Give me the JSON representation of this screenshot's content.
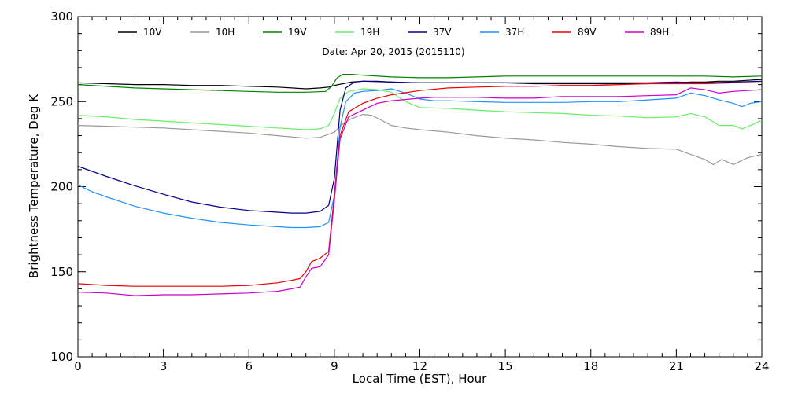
{
  "chart_data": {
    "type": "line",
    "title": "",
    "subtitle": "Date: Apr 20, 2015 (2015110)",
    "xlabel": "Local Time (EST), Hour",
    "ylabel": "Brightness Temperature, Deg K",
    "xlim": [
      0,
      24
    ],
    "ylim": [
      100,
      300
    ],
    "xticks": [
      0,
      3,
      6,
      9,
      12,
      15,
      18,
      21,
      24
    ],
    "yticks": [
      100,
      150,
      200,
      250,
      300
    ],
    "grid": false,
    "legend_position": "top",
    "series": [
      {
        "name": "10V",
        "color": "#000000",
        "x": [
          0,
          1,
          2,
          3,
          4,
          5,
          6,
          7,
          7.5,
          8,
          8.5,
          8.8,
          9,
          9.3,
          9.6,
          10,
          10.5,
          11,
          12,
          13,
          14,
          15,
          16,
          17,
          18,
          19,
          20,
          21,
          21.5,
          22,
          22.5,
          23,
          23.5,
          24
        ],
        "y": [
          261,
          260.5,
          260,
          260,
          259.5,
          259.5,
          259,
          258.5,
          258,
          257.5,
          258,
          258.5,
          259.5,
          260.5,
          261.5,
          262,
          262,
          261.5,
          261,
          261,
          261,
          261,
          260.5,
          260.5,
          260.5,
          260.5,
          260.5,
          261,
          261.5,
          261.5,
          262,
          262,
          262.5,
          263
        ]
      },
      {
        "name": "10H",
        "color": "#999999",
        "x": [
          0,
          1,
          2,
          3,
          4,
          5,
          6,
          7,
          8,
          8.5,
          9,
          9.3,
          9.6,
          10,
          10.3,
          10.6,
          11,
          11.5,
          12,
          13,
          14,
          15,
          16,
          17,
          18,
          19,
          20,
          21,
          21.5,
          22,
          22.3,
          22.6,
          23,
          23.5,
          24
        ],
        "y": [
          236,
          235.5,
          235,
          234.5,
          233.5,
          232.5,
          231.5,
          230,
          228.5,
          229,
          232,
          237,
          240,
          242.5,
          242,
          239.5,
          236,
          234.5,
          233.5,
          232,
          230,
          228.5,
          227.5,
          226,
          225,
          223.5,
          222.5,
          222,
          219,
          216,
          213,
          216,
          213,
          217,
          219
        ]
      },
      {
        "name": "19V",
        "color": "#008000",
        "x": [
          0,
          1,
          2,
          3,
          4,
          5,
          6,
          7,
          8,
          8.7,
          8.9,
          9.1,
          9.3,
          9.6,
          10,
          11,
          12,
          13,
          14,
          15,
          16,
          17,
          18,
          19,
          20,
          21,
          22,
          23,
          24
        ],
        "y": [
          260,
          259,
          258,
          257.5,
          257,
          256.5,
          256,
          255.5,
          255.5,
          256,
          259,
          264,
          266,
          266,
          265.5,
          264.5,
          264,
          264,
          264.5,
          265,
          265,
          265,
          265,
          265,
          265,
          265,
          265,
          264.5,
          265
        ]
      },
      {
        "name": "19H",
        "color": "#66ee66",
        "x": [
          0,
          1,
          2,
          3,
          4,
          5,
          6,
          7,
          8,
          8.5,
          8.8,
          9,
          9.2,
          9.5,
          10,
          10.5,
          11,
          11.5,
          12,
          13,
          14,
          15,
          16,
          17,
          18,
          19,
          20,
          21,
          21.5,
          22,
          22.5,
          23,
          23.3,
          23.6,
          24
        ],
        "y": [
          242,
          241,
          239.5,
          238.5,
          237.5,
          236.5,
          235.5,
          234.5,
          233.5,
          234,
          236,
          243,
          252,
          256,
          257.5,
          257,
          255.5,
          250,
          246.5,
          246,
          245,
          244,
          243.5,
          243,
          242,
          241.5,
          240.5,
          241,
          243,
          241,
          236,
          236,
          234,
          236,
          239
        ]
      },
      {
        "name": "37V",
        "color": "#00008b",
        "x": [
          0,
          0.5,
          1,
          2,
          3,
          4,
          5,
          6,
          7,
          7.5,
          8,
          8.5,
          8.8,
          9,
          9.1,
          9.2,
          9.4,
          9.7,
          10,
          11,
          12,
          13,
          14,
          15,
          16,
          17,
          18,
          19,
          20,
          21,
          22,
          23,
          24
        ],
        "y": [
          212,
          209,
          206,
          200.5,
          195.5,
          191,
          188,
          186,
          185,
          184.5,
          184.5,
          185.5,
          189,
          205,
          225,
          245,
          258,
          261.5,
          262,
          261.5,
          261,
          261,
          261,
          261,
          261,
          261,
          261,
          261,
          261,
          261.5,
          261,
          261.5,
          262
        ]
      },
      {
        "name": "37H",
        "color": "#1e90ff",
        "x": [
          0,
          0.5,
          1,
          2,
          3,
          4,
          5,
          6,
          7,
          7.5,
          8,
          8.5,
          8.8,
          9,
          9.1,
          9.2,
          9.4,
          9.7,
          10,
          10.5,
          11,
          11.5,
          12,
          12.5,
          13,
          14,
          15,
          16,
          17,
          18,
          19,
          20,
          21,
          21.5,
          22,
          22.5,
          23,
          23.3,
          23.6,
          24
        ],
        "y": [
          201,
          197,
          194,
          188.5,
          184.5,
          181.5,
          179,
          177.5,
          176.5,
          176,
          176,
          176.5,
          179,
          195,
          215,
          235,
          250,
          255,
          256,
          256.5,
          257.5,
          255,
          251.5,
          250.5,
          250.5,
          250,
          249.5,
          249.5,
          249.5,
          250,
          250,
          251,
          252,
          255,
          253.5,
          251,
          249,
          247,
          249,
          250
        ]
      },
      {
        "name": "89V",
        "color": "#ee0000",
        "x": [
          0,
          1,
          2,
          3,
          4,
          5,
          6,
          7,
          7.5,
          7.8,
          8,
          8.2,
          8.5,
          8.8,
          9,
          9.2,
          9.5,
          10,
          10.5,
          11,
          12,
          13,
          14,
          15,
          16,
          17,
          18,
          19,
          20,
          21,
          22,
          23,
          24
        ],
        "y": [
          143,
          142,
          141.5,
          141.5,
          141.5,
          141.5,
          142,
          143.5,
          145,
          146,
          150,
          156,
          158,
          162,
          195,
          230,
          244,
          249,
          252,
          254,
          256.5,
          258,
          258.5,
          259,
          259,
          259.5,
          259.5,
          260,
          260.5,
          260.5,
          260.5,
          261,
          261
        ]
      },
      {
        "name": "89H",
        "color": "#cc00cc",
        "x": [
          0,
          1,
          2,
          3,
          4,
          5,
          6,
          7,
          7.5,
          7.8,
          8,
          8.2,
          8.5,
          8.8,
          9,
          9.2,
          9.5,
          10,
          10.5,
          11,
          12,
          12.5,
          13,
          14,
          15,
          16,
          17,
          18,
          19,
          20,
          21,
          21.5,
          22,
          22.5,
          23,
          23.5,
          24
        ],
        "y": [
          138,
          137.5,
          136,
          136.5,
          136.5,
          137,
          137.5,
          138.5,
          140,
          141,
          147,
          152,
          153,
          160,
          192,
          228,
          241,
          245,
          249,
          250.5,
          252,
          252.5,
          252.5,
          252.5,
          252,
          252,
          253,
          253,
          253,
          253.5,
          254,
          258,
          257,
          255,
          256,
          256.5,
          257
        ]
      }
    ]
  }
}
